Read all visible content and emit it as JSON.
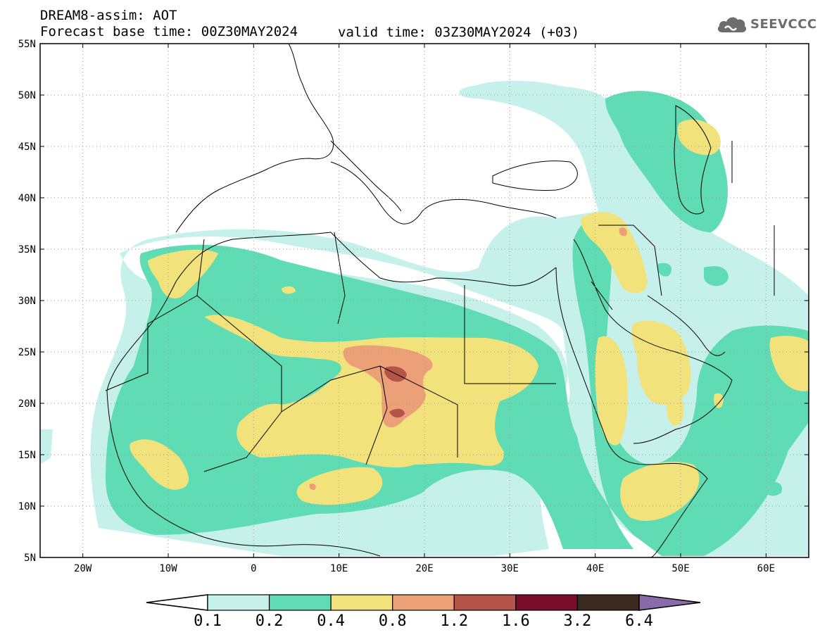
{
  "header": {
    "title_line1": "DREAM8-assim: AOT",
    "title_line2": "Forecast base time: 00Z30MAY2024",
    "valid_time": "valid time: 03Z30MAY2024 (+03)",
    "logo_text": "SEEVCCC",
    "logo_icon": "cloud-icon"
  },
  "map": {
    "lon_range": [
      -25,
      65
    ],
    "lat_range": [
      5,
      55
    ],
    "lat_ticks": [
      "55N",
      "50N",
      "45N",
      "40N",
      "35N",
      "30N",
      "25N",
      "20N",
      "15N",
      "10N",
      "5N"
    ],
    "lon_ticks": [
      "20W",
      "10W",
      "0",
      "10E",
      "20E",
      "30E",
      "40E",
      "50E",
      "60E"
    ],
    "gridlines": "dotted",
    "variable": "Aerosol Optical Thickness"
  },
  "colorbar": {
    "levels": [
      "0.1",
      "0.2",
      "0.4",
      "0.8",
      "1.2",
      "1.6",
      "3.2",
      "6.4"
    ],
    "colors": [
      "#c6f1ea",
      "#5fdcb4",
      "#f2e27c",
      "#eba077",
      "#b5554a",
      "#7a0d2a",
      "#3c2a1e"
    ],
    "under_color": "#ffffff",
    "over_color": "#8b6aa9"
  },
  "colors": {
    "c1": "#c6f1ea",
    "c2": "#5fdcb4",
    "c3": "#f2e27c",
    "c4": "#eba077",
    "c5": "#b5554a",
    "c6": "#7a0d2a"
  }
}
